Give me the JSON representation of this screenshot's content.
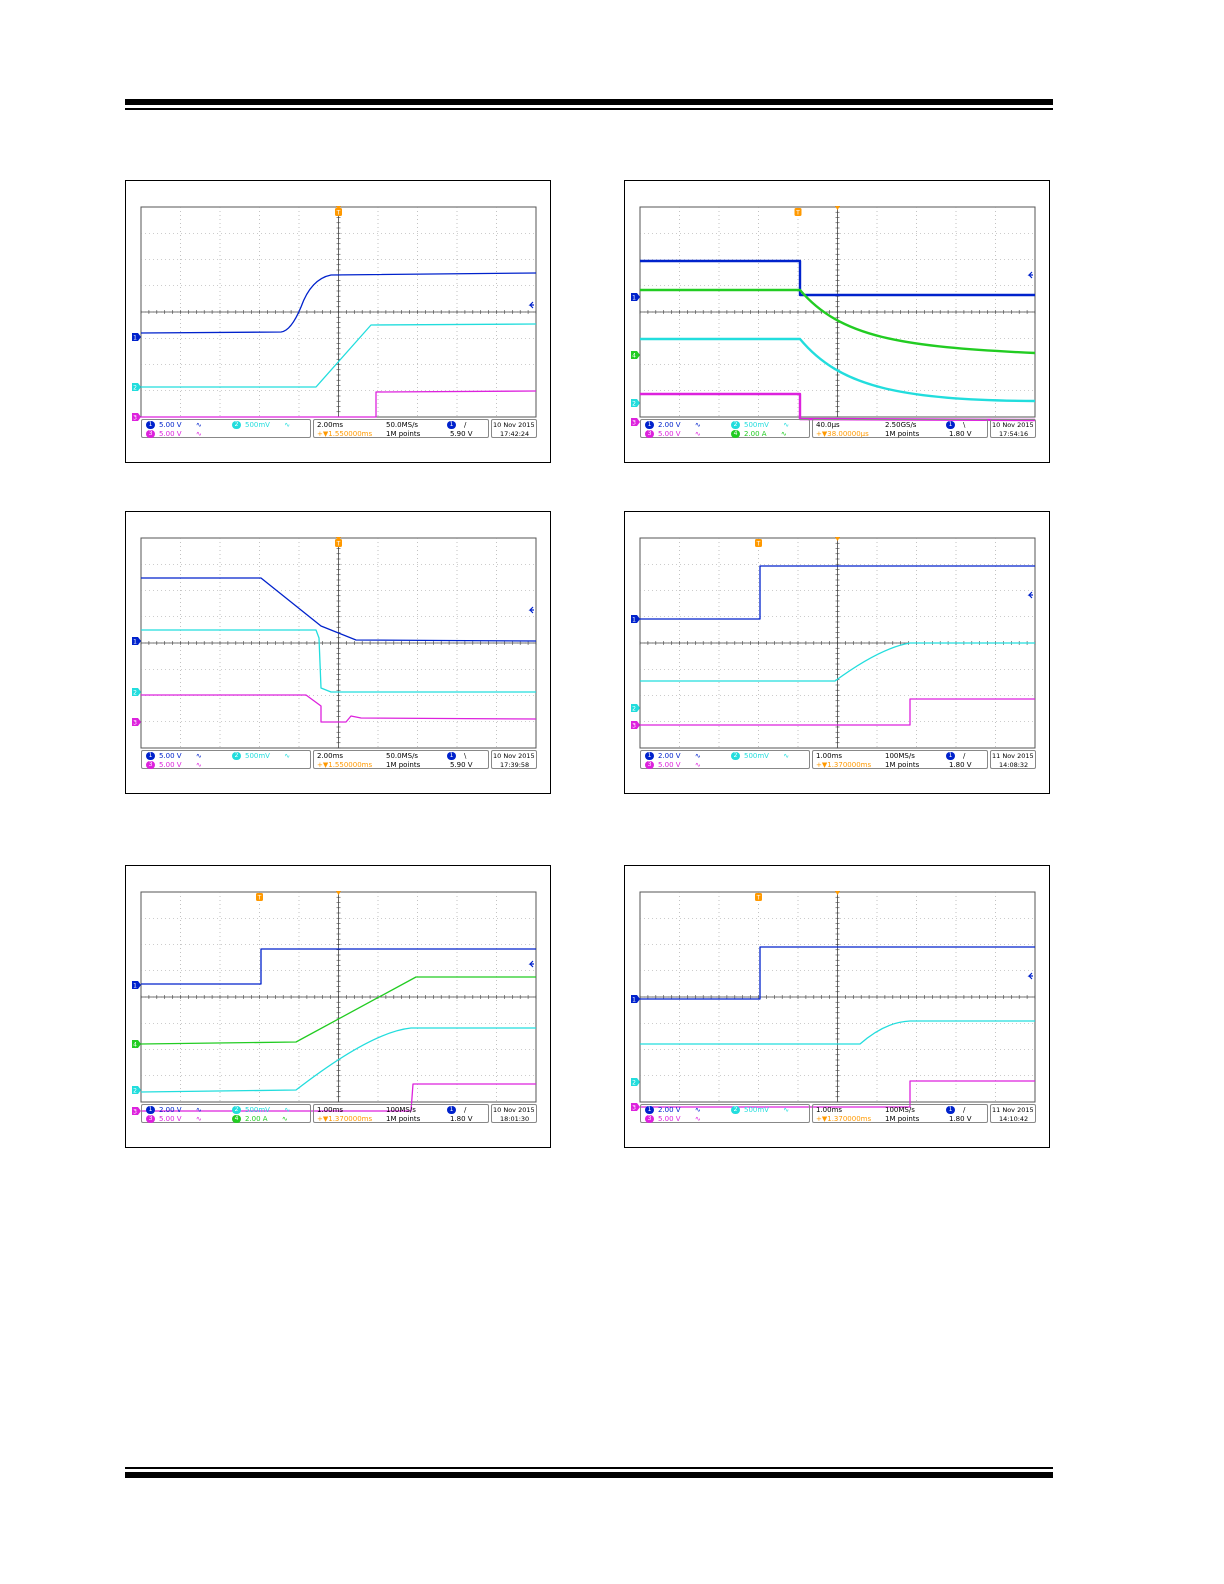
{
  "colors": {
    "ch1": "#0022cc",
    "ch2": "#22dddd",
    "ch3": "#dd22dd",
    "ch4": "#22cc22",
    "trigger": "#ff9900",
    "grid": "#999999"
  },
  "icons": {
    "channel_marker": "triangle-right-icon",
    "trigger_marker": "trigger-t-icon",
    "level_marker": "arrow-left-icon"
  },
  "scopes": [
    {
      "id": "scope-1",
      "ch_rows": [
        [
          {
            "num": "1",
            "color": "ch1",
            "scale": "5.00 V"
          },
          {
            "num": "2",
            "color": "ch2",
            "scale": "500mV"
          }
        ],
        [
          {
            "num": "3",
            "color": "ch3",
            "scale": "5.00 V"
          }
        ]
      ],
      "timebase": "2.00ms",
      "delay": "+▼1.550000ms",
      "rate": "50.0MS/s",
      "points": "1M points",
      "trig_ch": "1",
      "trig_slope": "/",
      "trig_level": "5.90 V",
      "date": "10 Nov 2015",
      "time": "17:42:24"
    },
    {
      "id": "scope-2",
      "ch_rows": [
        [
          {
            "num": "1",
            "color": "ch1",
            "scale": "2.00 V"
          },
          {
            "num": "2",
            "color": "ch2",
            "scale": "500mV"
          }
        ],
        [
          {
            "num": "3",
            "color": "ch3",
            "scale": "5.00 V"
          },
          {
            "num": "4",
            "color": "ch4",
            "scale": "2.00 A"
          }
        ]
      ],
      "timebase": "40.0µs",
      "delay": "+▼38.00000µs",
      "rate": "2.50GS/s",
      "points": "1M points",
      "trig_ch": "1",
      "trig_slope": "\\",
      "trig_level": "1.80 V",
      "date": "10 Nov 2015",
      "time": "17:54:16"
    },
    {
      "id": "scope-3",
      "ch_rows": [
        [
          {
            "num": "1",
            "color": "ch1",
            "scale": "5.00 V"
          },
          {
            "num": "2",
            "color": "ch2",
            "scale": "500mV"
          }
        ],
        [
          {
            "num": "3",
            "color": "ch3",
            "scale": "5.00 V"
          }
        ]
      ],
      "timebase": "2.00ms",
      "delay": "+▼1.550000ms",
      "rate": "50.0MS/s",
      "points": "1M points",
      "trig_ch": "1",
      "trig_slope": "\\",
      "trig_level": "5.90 V",
      "date": "10 Nov 2015",
      "time": "17:39:58"
    },
    {
      "id": "scope-4",
      "ch_rows": [
        [
          {
            "num": "1",
            "color": "ch1",
            "scale": "2.00 V"
          },
          {
            "num": "2",
            "color": "ch2",
            "scale": "500mV"
          }
        ],
        [
          {
            "num": "3",
            "color": "ch3",
            "scale": "5.00 V"
          }
        ]
      ],
      "timebase": "1.00ms",
      "delay": "+▼1.370000ms",
      "rate": "100MS/s",
      "points": "1M points",
      "trig_ch": "1",
      "trig_slope": "/",
      "trig_level": "1.80 V",
      "date": "11 Nov 2015",
      "time": "14:08:32"
    },
    {
      "id": "scope-5",
      "ch_rows": [
        [
          {
            "num": "1",
            "color": "ch1",
            "scale": "2.00 V"
          },
          {
            "num": "2",
            "color": "ch2",
            "scale": "500mV"
          }
        ],
        [
          {
            "num": "3",
            "color": "ch3",
            "scale": "5.00 V"
          },
          {
            "num": "4",
            "color": "ch4",
            "scale": "2.00 A"
          }
        ]
      ],
      "timebase": "1.00ms",
      "delay": "+▼1.370000ms",
      "rate": "100MS/s",
      "points": "1M points",
      "trig_ch": "1",
      "trig_slope": "/",
      "trig_level": "1.80 V",
      "date": "10 Nov 2015",
      "time": "18:01:30"
    },
    {
      "id": "scope-6",
      "ch_rows": [
        [
          {
            "num": "1",
            "color": "ch1",
            "scale": "2.00 V"
          },
          {
            "num": "2",
            "color": "ch2",
            "scale": "500mV"
          }
        ],
        [
          {
            "num": "3",
            "color": "ch3",
            "scale": "5.00 V"
          }
        ]
      ],
      "timebase": "1.00ms",
      "delay": "+▼1.370000ms",
      "rate": "100MS/s",
      "points": "1M points",
      "trig_ch": "1",
      "trig_slope": "/",
      "trig_level": "1.80 V",
      "date": "11 Nov 2015",
      "time": "14:10:42"
    }
  ]
}
